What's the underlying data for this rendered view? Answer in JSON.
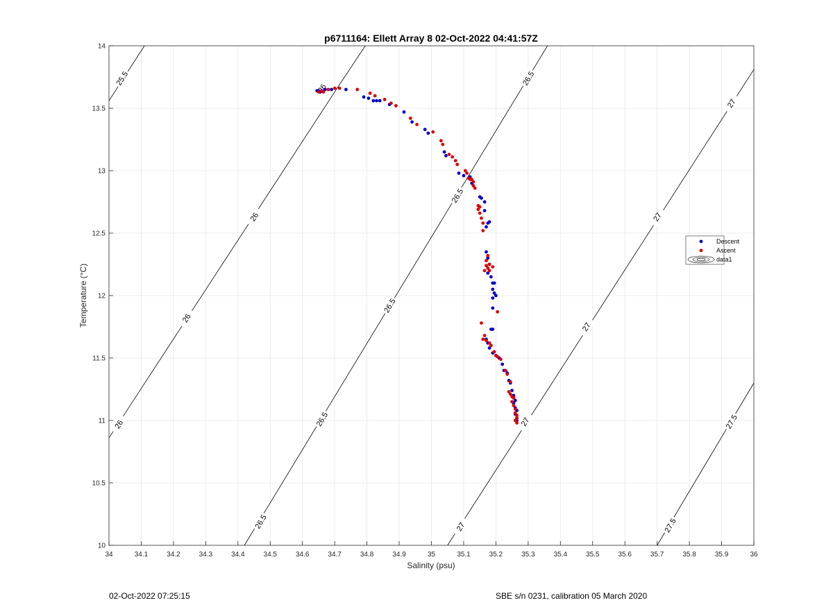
{
  "chart_data": {
    "type": "scatter",
    "title": "p6711164: Ellett Array 8 02-Oct-2022 04:41:57Z",
    "xlabel": "Salinity (psu)",
    "ylabel": "Temperature (°C)",
    "xlim": [
      34,
      36
    ],
    "ylim": [
      10,
      14
    ],
    "xticks": [
      "34",
      "34.1",
      "34.2",
      "34.3",
      "34.4",
      "34.5",
      "34.6",
      "34.7",
      "34.8",
      "34.9",
      "35",
      "35.1",
      "35.2",
      "35.3",
      "35.4",
      "35.5",
      "35.6",
      "35.7",
      "35.8",
      "35.9",
      "36"
    ],
    "yticks": [
      "10",
      "10.5",
      "11",
      "11.5",
      "12",
      "12.5",
      "13",
      "13.5",
      "14"
    ],
    "grid": true,
    "legend_position": "right",
    "colors": {
      "descent": "#0000cc",
      "ascent": "#dd0000",
      "contour": "#000000",
      "grid": "#e6e6e6"
    },
    "density_contours": [
      {
        "label": "25.5",
        "points": [
          [
            34,
            13.56
          ],
          [
            34.11,
            14
          ]
        ],
        "labels_at": [
          [
            34.04,
            13.74
          ]
        ]
      },
      {
        "label": "26",
        "points": [
          [
            34,
            10.86
          ],
          [
            34.71,
            13.67
          ],
          [
            34.795,
            14
          ]
        ],
        "labels_at": [
          [
            34.03,
            10.97
          ],
          [
            34.24,
            11.82
          ],
          [
            34.45,
            12.63
          ],
          [
            34.66,
            13.66
          ]
        ]
      },
      {
        "label": "26.5",
        "points": [
          [
            34.42,
            10
          ],
          [
            35.36,
            14
          ]
        ],
        "labels_at": [
          [
            34.47,
            10.19
          ],
          [
            34.66,
            11.01
          ],
          [
            34.87,
            11.92
          ],
          [
            35.08,
            12.8
          ],
          [
            35.3,
            13.74
          ]
        ]
      },
      {
        "label": "27",
        "points": [
          [
            35.05,
            10
          ],
          [
            36,
            13.81
          ]
        ],
        "labels_at": [
          [
            35.09,
            10.15
          ],
          [
            35.29,
            10.99
          ],
          [
            35.48,
            11.75
          ],
          [
            35.7,
            12.63
          ],
          [
            35.93,
            13.54
          ]
        ]
      },
      {
        "label": "27.5",
        "points": [
          [
            35.7,
            10
          ],
          [
            36,
            11.3
          ]
        ],
        "labels_at": [
          [
            35.74,
            10.16
          ],
          [
            35.93,
            10.99
          ]
        ]
      }
    ],
    "series": [
      {
        "name": "Descent",
        "points": [
          [
            34.645,
            13.64
          ],
          [
            34.65,
            13.64
          ],
          [
            34.655,
            13.63
          ],
          [
            34.66,
            13.64
          ],
          [
            34.67,
            13.65
          ],
          [
            34.69,
            13.65
          ],
          [
            34.735,
            13.65
          ],
          [
            34.79,
            13.59
          ],
          [
            34.805,
            13.58
          ],
          [
            34.82,
            13.56
          ],
          [
            34.83,
            13.56
          ],
          [
            34.84,
            13.56
          ],
          [
            34.87,
            13.53
          ],
          [
            34.915,
            13.47
          ],
          [
            34.94,
            13.39
          ],
          [
            34.98,
            13.33
          ],
          [
            34.99,
            13.3
          ],
          [
            35.04,
            13.15
          ],
          [
            35.045,
            13.12
          ],
          [
            35.085,
            12.98
          ],
          [
            35.1,
            12.96
          ],
          [
            35.12,
            12.95
          ],
          [
            35.125,
            12.9
          ],
          [
            35.13,
            12.88
          ],
          [
            35.15,
            12.79
          ],
          [
            35.155,
            12.78
          ],
          [
            35.165,
            12.75
          ],
          [
            35.165,
            12.68
          ],
          [
            35.175,
            12.58
          ],
          [
            35.18,
            12.59
          ],
          [
            35.17,
            12.55
          ],
          [
            35.17,
            12.35
          ],
          [
            35.175,
            12.3
          ],
          [
            35.18,
            12.25
          ],
          [
            35.175,
            12.18
          ],
          [
            35.185,
            12.15
          ],
          [
            35.19,
            12.1
          ],
          [
            35.195,
            12.1
          ],
          [
            35.19,
            12.05
          ],
          [
            35.195,
            12.02
          ],
          [
            35.2,
            12.0
          ],
          [
            35.19,
            11.98
          ],
          [
            35.19,
            11.9
          ],
          [
            35.185,
            11.73
          ],
          [
            35.19,
            11.73
          ],
          [
            35.17,
            11.65
          ],
          [
            35.175,
            11.62
          ],
          [
            35.18,
            11.58
          ],
          [
            35.19,
            11.54
          ],
          [
            35.2,
            11.52
          ],
          [
            35.21,
            11.5
          ],
          [
            35.22,
            11.45
          ],
          [
            35.225,
            11.4
          ],
          [
            35.235,
            11.38
          ],
          [
            35.24,
            11.32
          ],
          [
            35.245,
            11.3
          ],
          [
            35.25,
            11.24
          ],
          [
            35.255,
            11.2
          ],
          [
            35.255,
            11.18
          ],
          [
            35.26,
            11.16
          ],
          [
            35.255,
            11.14
          ],
          [
            35.26,
            11.1
          ],
          [
            35.265,
            11.08
          ],
          [
            35.26,
            11.05
          ],
          [
            35.265,
            11.02
          ],
          [
            35.265,
            11.0
          ]
        ]
      },
      {
        "name": "Ascent",
        "points": [
          [
            34.65,
            13.63
          ],
          [
            34.66,
            13.64
          ],
          [
            34.665,
            13.63
          ],
          [
            34.68,
            13.65
          ],
          [
            34.7,
            13.66
          ],
          [
            34.715,
            13.66
          ],
          [
            34.77,
            13.65
          ],
          [
            34.81,
            13.62
          ],
          [
            34.825,
            13.6
          ],
          [
            34.855,
            13.57
          ],
          [
            34.875,
            13.54
          ],
          [
            34.89,
            13.52
          ],
          [
            34.935,
            13.42
          ],
          [
            34.955,
            13.37
          ],
          [
            35.005,
            13.31
          ],
          [
            35.03,
            13.24
          ],
          [
            35.035,
            13.21
          ],
          [
            35.055,
            13.13
          ],
          [
            35.065,
            13.11
          ],
          [
            35.075,
            13.08
          ],
          [
            35.08,
            13.05
          ],
          [
            35.105,
            13.0
          ],
          [
            35.11,
            12.98
          ],
          [
            35.115,
            12.94
          ],
          [
            35.12,
            12.93
          ],
          [
            35.125,
            12.93
          ],
          [
            35.13,
            12.91
          ],
          [
            35.13,
            12.88
          ],
          [
            35.135,
            12.86
          ],
          [
            35.145,
            12.72
          ],
          [
            35.15,
            12.71
          ],
          [
            35.145,
            12.69
          ],
          [
            35.15,
            12.66
          ],
          [
            35.155,
            12.62
          ],
          [
            35.16,
            12.58
          ],
          [
            35.16,
            12.52
          ],
          [
            35.175,
            12.32
          ],
          [
            35.17,
            12.28
          ],
          [
            35.18,
            12.25
          ],
          [
            35.17,
            12.24
          ],
          [
            35.175,
            12.22
          ],
          [
            35.165,
            12.2
          ],
          [
            35.18,
            12.2
          ],
          [
            35.19,
            12.23
          ],
          [
            35.205,
            11.87
          ],
          [
            35.155,
            11.78
          ],
          [
            35.165,
            11.68
          ],
          [
            35.16,
            11.65
          ],
          [
            35.17,
            11.64
          ],
          [
            35.18,
            11.62
          ],
          [
            35.185,
            11.6
          ],
          [
            35.195,
            11.55
          ],
          [
            35.2,
            11.52
          ],
          [
            35.205,
            11.51
          ],
          [
            35.215,
            11.49
          ],
          [
            35.23,
            11.4
          ],
          [
            35.235,
            11.37
          ],
          [
            35.245,
            11.31
          ],
          [
            35.24,
            11.23
          ],
          [
            35.245,
            11.21
          ],
          [
            35.25,
            11.19
          ],
          [
            35.255,
            11.18
          ],
          [
            35.25,
            11.15
          ],
          [
            35.255,
            11.12
          ],
          [
            35.26,
            11.09
          ],
          [
            35.26,
            11.06
          ],
          [
            35.265,
            11.04
          ],
          [
            35.265,
            11.02
          ],
          [
            35.26,
            11.0
          ],
          [
            35.265,
            10.98
          ]
        ]
      }
    ],
    "legend_entries": [
      "Descent",
      "Ascent",
      "data1"
    ]
  },
  "footer": {
    "left": "02-Oct-2022 07:25:15",
    "right": "SBE s/n 0231, calibration 05 March 2020"
  }
}
